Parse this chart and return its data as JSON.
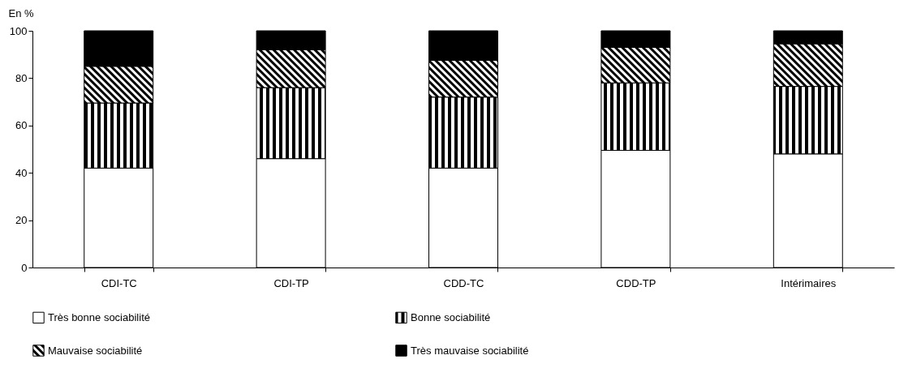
{
  "chart_data": {
    "type": "bar",
    "stacked": true,
    "ylabel": "En %",
    "categories": [
      "CDI-TC",
      "CDI-TP",
      "CDD-TC",
      "CDD-TP",
      "Intérimaires"
    ],
    "series": [
      {
        "name": "Très bonne sociabilité",
        "color": "#ffffff",
        "values": [
          42,
          46,
          42,
          49.5,
          48
        ]
      },
      {
        "name": "Bonne sociabilité",
        "color": "#000000",
        "values": [
          27.5,
          30,
          30,
          28.5,
          28.5
        ]
      },
      {
        "name": "Mauvaise sociabilité",
        "color": "#000000",
        "values": [
          15.5,
          16,
          15.5,
          15,
          18
        ]
      },
      {
        "name": "Très mauvaise sociabilité",
        "color": "#000000",
        "values": [
          15,
          8,
          12.5,
          7,
          5.5
        ]
      }
    ],
    "ylim": [
      0,
      100
    ],
    "yticks": [
      0,
      20,
      40,
      60,
      80,
      100
    ],
    "grid": false,
    "legend": "bottom"
  }
}
